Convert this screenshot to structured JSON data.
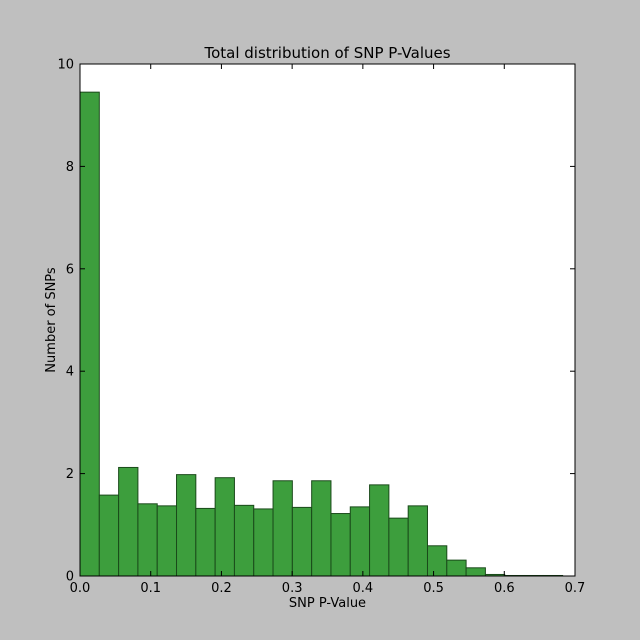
{
  "chart_data": {
    "type": "bar",
    "title": "Total distribution of SNP P-Values",
    "xlabel": "SNP P-Value",
    "ylabel": "Number of SNPs",
    "xlim": [
      0.0,
      0.7
    ],
    "ylim": [
      0,
      10
    ],
    "xticks": [
      "0.0",
      "0.1",
      "0.2",
      "0.3",
      "0.4",
      "0.5",
      "0.6",
      "0.7"
    ],
    "yticks": [
      "0",
      "2",
      "4",
      "6",
      "8",
      "10"
    ],
    "grid": false,
    "bin_width": 0.0273,
    "bin_starts": [
      0.0,
      0.0273,
      0.0546,
      0.0819,
      0.1092,
      0.1365,
      0.1638,
      0.1911,
      0.2184,
      0.2457,
      0.273,
      0.3003,
      0.3276,
      0.3549,
      0.3822,
      0.4095,
      0.4368,
      0.4641,
      0.4914,
      0.5187,
      0.546,
      0.5733,
      0.6006,
      0.6279,
      0.6552
    ],
    "values": [
      9.45,
      1.58,
      2.12,
      1.41,
      1.37,
      1.98,
      1.32,
      1.92,
      1.38,
      1.31,
      1.86,
      1.34,
      1.86,
      1.22,
      1.35,
      1.78,
      1.13,
      1.37,
      0.59,
      0.31,
      0.16,
      0.03,
      0.01,
      0.01,
      0.01
    ],
    "bar_color": "#3d9e3d",
    "bar_edge_color": "#1a4a1a"
  }
}
